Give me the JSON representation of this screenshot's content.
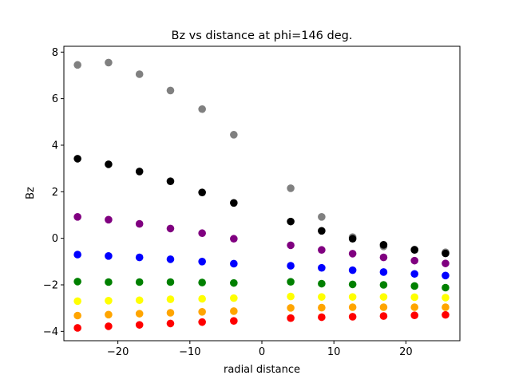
{
  "chart_data": {
    "type": "scatter",
    "title": "Bz vs distance at phi=146 deg.",
    "xlabel": "radial distance",
    "ylabel": "Bz",
    "xlim": [
      -27.5,
      27.5
    ],
    "ylim": [
      -4.4,
      8.25
    ],
    "xticks": [
      -20,
      -10,
      0,
      10,
      20
    ],
    "xtick_labels": [
      "−20",
      "−10",
      "0",
      "10",
      "20"
    ],
    "yticks": [
      -4,
      -2,
      0,
      2,
      4,
      6,
      8
    ],
    "ytick_labels": [
      "−4",
      "−2",
      "0",
      "2",
      "4",
      "6",
      "8"
    ],
    "grid": false,
    "x": [
      -25.6,
      -21.3,
      -17.0,
      -12.7,
      -8.3,
      -3.9,
      4.0,
      8.3,
      12.6,
      16.9,
      21.2,
      25.5
    ],
    "series": [
      {
        "color": "#808080",
        "values": [
          7.45,
          7.55,
          7.05,
          6.35,
          5.55,
          4.45,
          2.15,
          0.92,
          0.05,
          -0.35,
          -0.48,
          -0.6
        ]
      },
      {
        "color": "#000000",
        "values": [
          3.42,
          3.18,
          2.87,
          2.45,
          1.97,
          1.52,
          0.72,
          0.32,
          -0.02,
          -0.28,
          -0.5,
          -0.65
        ]
      },
      {
        "color": "#800080",
        "values": [
          0.92,
          0.8,
          0.62,
          0.42,
          0.22,
          -0.02,
          -0.3,
          -0.5,
          -0.66,
          -0.82,
          -0.96,
          -1.08
        ]
      },
      {
        "color": "#0000ff",
        "values": [
          -0.7,
          -0.76,
          -0.82,
          -0.9,
          -1.0,
          -1.09,
          -1.18,
          -1.27,
          -1.37,
          -1.45,
          -1.53,
          -1.6
        ]
      },
      {
        "color": "#008000",
        "values": [
          -1.86,
          -1.88,
          -1.88,
          -1.88,
          -1.9,
          -1.92,
          -1.87,
          -1.95,
          -1.98,
          -2.0,
          -2.05,
          -2.12
        ]
      },
      {
        "color": "#ffff00",
        "values": [
          -2.7,
          -2.68,
          -2.66,
          -2.62,
          -2.6,
          -2.57,
          -2.5,
          -2.52,
          -2.52,
          -2.52,
          -2.53,
          -2.55
        ]
      },
      {
        "color": "#ffa500",
        "values": [
          -3.32,
          -3.28,
          -3.24,
          -3.2,
          -3.16,
          -3.13,
          -2.99,
          -2.98,
          -2.96,
          -2.96,
          -2.96,
          -2.96
        ]
      },
      {
        "color": "#ff0000",
        "values": [
          -3.85,
          -3.78,
          -3.72,
          -3.66,
          -3.6,
          -3.55,
          -3.43,
          -3.39,
          -3.37,
          -3.34,
          -3.31,
          -3.29
        ]
      }
    ]
  }
}
